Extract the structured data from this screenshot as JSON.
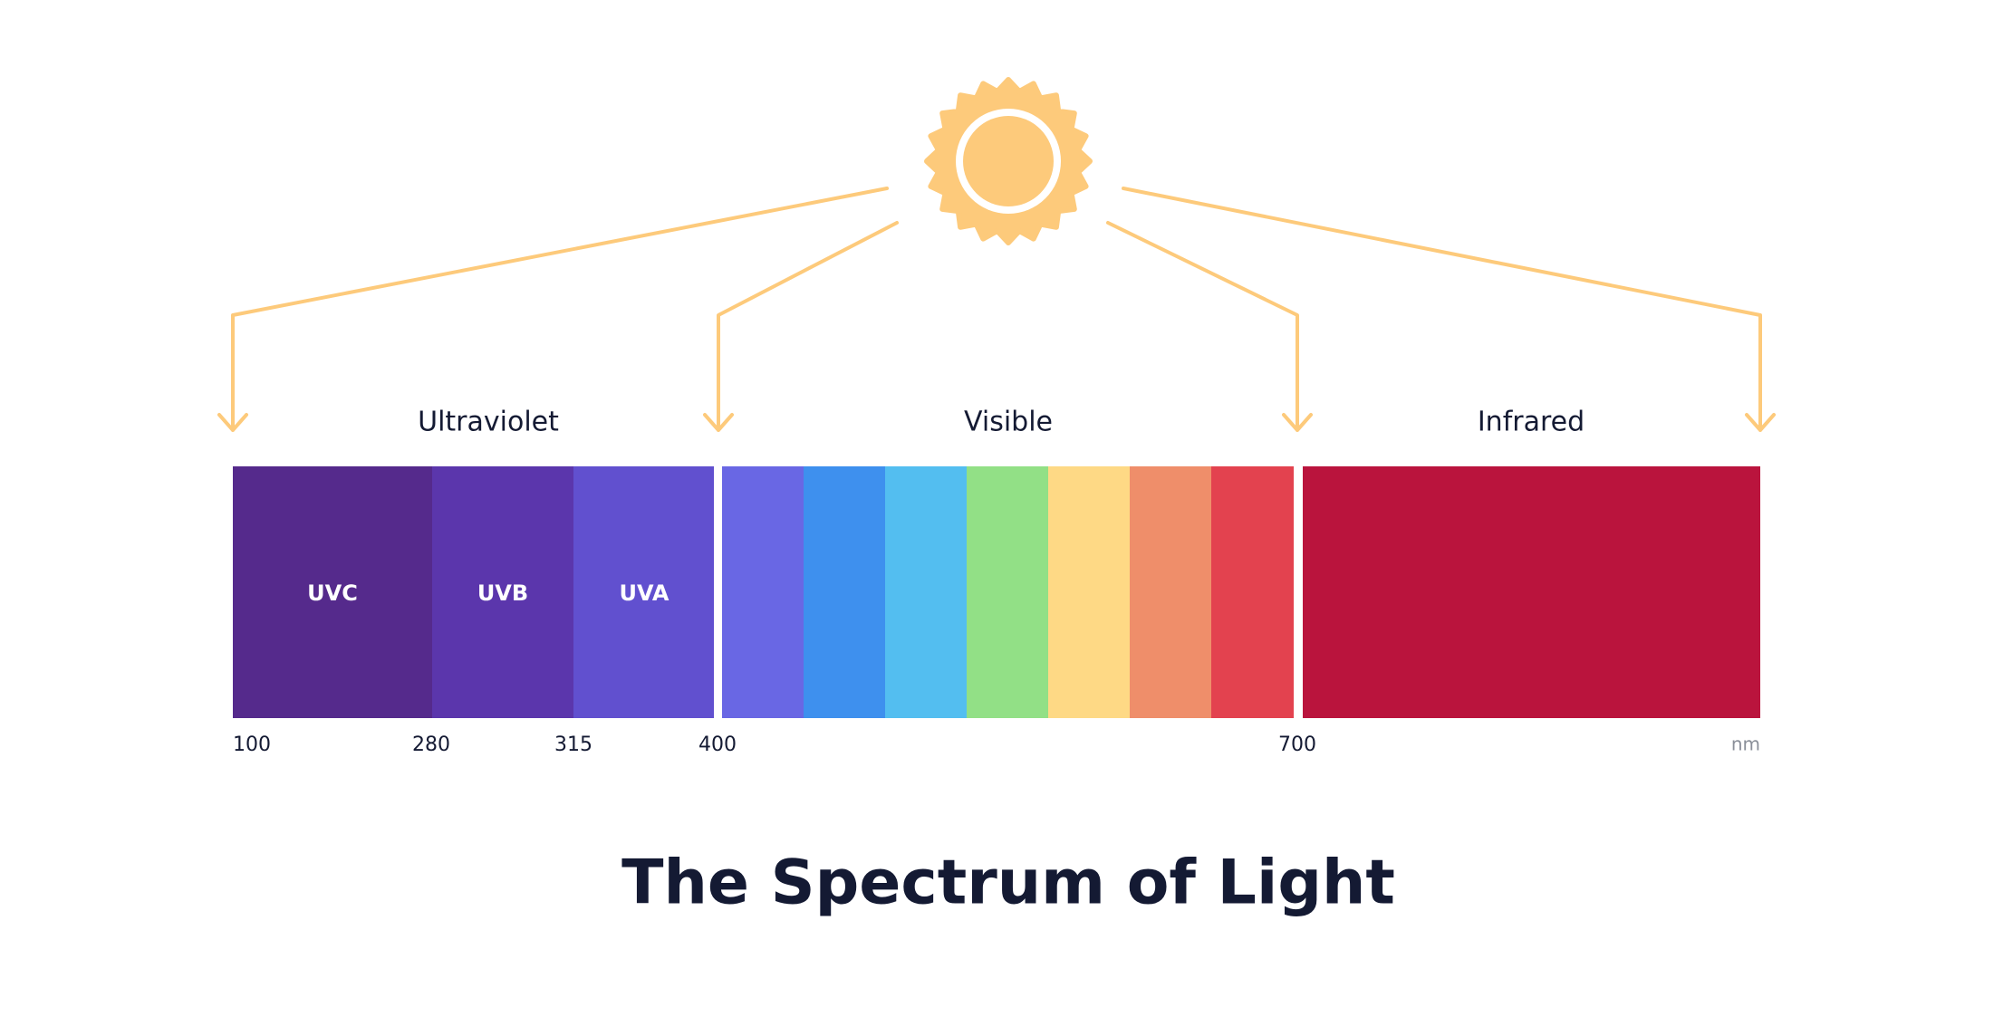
{
  "sections": {
    "ultraviolet": "Ultraviolet",
    "visible": "Visible",
    "infrared": "Infrared"
  },
  "bands": {
    "uvc": "UVC",
    "uvb": "UVB",
    "uva": "UVA"
  },
  "scale": {
    "ticks": [
      "100",
      "280",
      "315",
      "400",
      "700"
    ],
    "unit": "nm"
  },
  "title": "The Spectrum of Light"
}
